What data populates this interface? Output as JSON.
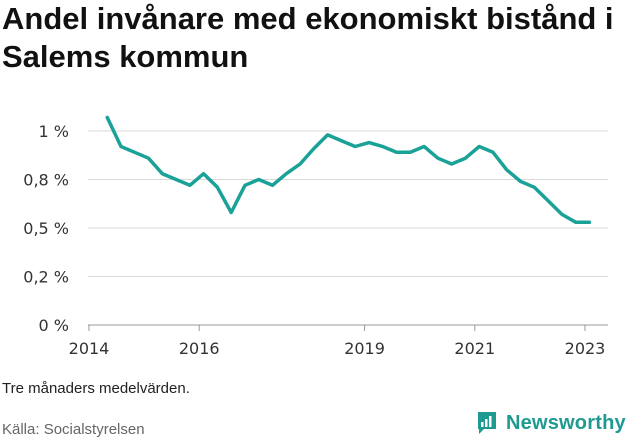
{
  "title": "Andel invånare med ekonomiskt bistånd i Salems kommun",
  "note": "Tre månaders medelvärden.",
  "source": "Källa: Socialstyrelsen",
  "brand": "Newsworthy",
  "colors": {
    "line": "#1aa198",
    "grid": "#d9d9d9",
    "axis": "#999999",
    "brand": "#1f9a91"
  },
  "chart_data": {
    "type": "line",
    "title": "Andel invånare med ekonomiskt bistånd i Salems kommun",
    "xlabel": "",
    "ylabel": "",
    "x_ticks": [
      "2014",
      "2016",
      "2019",
      "2021",
      "2023"
    ],
    "x_tick_values": [
      2014.0,
      2016.0,
      2019.0,
      2021.0,
      2023.0
    ],
    "y_ticks": [
      "0 %",
      "0,2 %",
      "0,5 %",
      "0,8 %",
      "1 %"
    ],
    "y_tick_values": [
      0,
      0.25,
      0.5,
      0.75,
      1.0
    ],
    "ylim": [
      0,
      1.1
    ],
    "xlim": [
      2014.0,
      2023.4
    ],
    "grid": true,
    "series": [
      {
        "x": [
          2014.33,
          2014.58,
          2014.83,
          2015.08,
          2015.33,
          2015.58,
          2015.83,
          2016.08,
          2016.33,
          2016.58,
          2016.83,
          2017.08,
          2017.33,
          2017.58,
          2017.83,
          2018.08,
          2018.33,
          2018.58,
          2018.83,
          2019.08,
          2019.33,
          2019.58,
          2019.83,
          2020.08,
          2020.33,
          2020.58,
          2020.83,
          2021.08,
          2021.33,
          2021.58,
          2021.83,
          2022.08,
          2022.33,
          2022.58,
          2022.83,
          2023.08
        ],
        "values": [
          1.07,
          0.92,
          0.89,
          0.86,
          0.78,
          0.75,
          0.72,
          0.78,
          0.71,
          0.58,
          0.72,
          0.75,
          0.72,
          0.78,
          0.83,
          0.91,
          0.98,
          0.95,
          0.92,
          0.94,
          0.92,
          0.89,
          0.89,
          0.92,
          0.86,
          0.83,
          0.86,
          0.92,
          0.89,
          0.8,
          0.74,
          0.71,
          0.64,
          0.57,
          0.53,
          0.53
        ]
      }
    ]
  }
}
